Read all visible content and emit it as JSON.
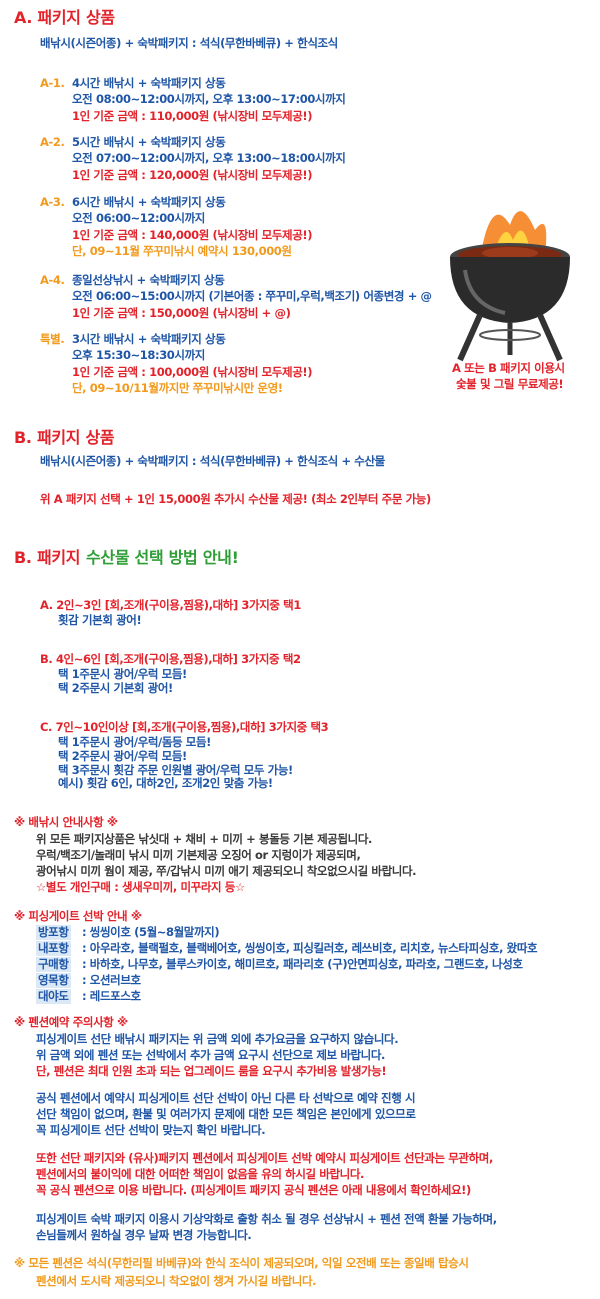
{
  "package_a": {
    "title": "A. 패키지 상품",
    "subtitle": "배낚시(시즌어종) + 숙박패키지 : 석식(무한바베큐) + 한식조식",
    "items": [
      {
        "label": "A-1.",
        "lines": [
          "4시간 배낚시 + 숙박패키지 상동",
          "오전 08:00~12:00시까지, 오후 13:00~17:00시까지",
          "1인 기준 금액 : 110,000원 (낚시장비 모두제공!)"
        ]
      },
      {
        "label": "A-2.",
        "lines": [
          "5시간 배낚시 + 숙박패키지 상동",
          "오전 07:00~12:00시까지, 오후 13:00~18:00시까지",
          "1인 기준 금액 : 120,000원 (낚시장비 모두제공!)"
        ]
      },
      {
        "label": "A-3.",
        "lines": [
          "6시간 배낚시 + 숙박패키지 상동",
          "오전 06:00~12:00시까지",
          "1인 기준 금액 : 140,000원 (낚시장비 모두제공!)",
          "단, 09~11월 쭈꾸미낚시 예약시 130,000원"
        ]
      },
      {
        "label": "A-4.",
        "lines": [
          "종일선상낚시 + 숙박패키지 상동",
          "오전 06:00~15:00시까지 (기본어종 : 쭈꾸미,우럭,백조기) 어종변경 + @",
          "1인 기준 금액 : 150,000원 (낚시장비 + @)"
        ]
      },
      {
        "label": "특별.",
        "lines": [
          "3시간 배낚시 + 숙박패키지 상동",
          "오후  15:30~18:30시까지",
          "1인 기준 금액 : 100,000원 (낚시장비 모두제공!)",
          "단, 09~10/11월까지만 쭈꾸미낚시만 운영!"
        ]
      }
    ],
    "note": [
      "A 또는 B 패키지 이용시",
      "숯불 및 그릴 무료제공!"
    ]
  },
  "package_b": {
    "title": "B. 패키지 상품",
    "subtitle": "배낚시(시즌어종) + 숙박패키지 : 석식(무한바베큐) + 한식조식 + 수산물",
    "offer": "위 A 패키지 선택 + 1인 15,000원 추가시 수산물 제공! (최소 2인부터 주문 가능)"
  },
  "seafood_guide": {
    "title_prefix": "B. 패키지",
    "title_highlight": "수산물 선택 방법 안내!",
    "options": [
      {
        "heading": "A. 2인~3인 [회,조개(구이용,찜용),대하] 3가지중 택1",
        "lines": [
          "횟감 기본회 광어!"
        ]
      },
      {
        "heading": "B. 4인~6인 [회,조개(구이용,찜용),대하] 3가지중 택2",
        "lines": [
          "택 1주문시 광어/우럭 모듬!",
          "택 2주문시 기본회 광어!"
        ]
      },
      {
        "heading": "C. 7인~10인이상 [회,조개(구이용,찜용),대하] 3가지중 택3",
        "lines": [
          "택 1주문시 광어/우럭/돔등 모듬!",
          "택 2주문시 광어/우럭 모듬!",
          "택 3주문시 횟감 주문 인원별 광어/우럭 모두 가능!",
          "예시) 횟감 6인, 대하2인, 조개2인 맞춤 가능!"
        ]
      }
    ]
  },
  "fishing_notice": {
    "title": "※ 배낚시 안내사항 ※",
    "lines": [
      "위 모든 패키지상품은 낚싯대 + 채비 + 미끼 + 봉돌등 기본 제공됩니다.",
      "우럭/백조기/놀래미 낚시 미끼 기본제공 오징어 or 지렁이가 제공되며,",
      "광어낚시 미끼 웜이 제공, 쭈/갑낚시 미끼 애기 제공되오니 착오없으시길 바랍니다."
    ],
    "extra": "☆별도 개인구매 : 생새우미끼, 미꾸라지 등☆"
  },
  "boat_info": {
    "title": "※ 피싱게이트 선박 안내 ※",
    "rows": [
      {
        "port": "방포항",
        "boats": ": 씽씽이호 (5월~8월말까지)"
      },
      {
        "port": "내포항",
        "boats": ": 아우라호, 블랙펄호, 블랙베어호, 씽씽이호, 피싱킬러호, 레쓰비호, 리치호, 뉴스타피싱호, 왔따호"
      },
      {
        "port": "구매항",
        "boats": ": 바하호, 나무호, 블루스카이호, 해미르호, 패라리호 (구)안면피싱호, 파라호, 그랜드호, 나성호"
      },
      {
        "port": "영목항",
        "boats": ": 오션러브호"
      },
      {
        "port": "대야도",
        "boats": ": 레드포스호"
      }
    ]
  },
  "pension_notice": {
    "title": "※ 펜션예약 주의사항 ※",
    "paragraphs": [
      [
        "피싱게이트 선단 배낚시 패키지는 위 금액 외에 추가요금을 요구하지 않습니다.",
        "위 금액 외에 펜션 또는 선박에서 추가 금액 요구시 선단으로 제보 바랍니다.",
        "단, 펜션은 최대 인원 초과 되는 업그레이드 룸을 요구시 추가비용 발생가능!"
      ],
      [
        "공식 펜션에서 예약시 피싱게이트 선단 선박이 아닌 다른 타 선박으로 예약 진행 시",
        "선단 책임이 없으며, 환불 및 여러가지 문제에 대한 모든 책임은 본인에게 있으므로",
        "꼭 피싱게이트 선단 선박이 맞는지 확인 바랍니다."
      ],
      [
        "또한 선단 패키지와 (유사)패키지 펜션에서 피싱게이트 선박 예약시 피싱게이트 선단과는 무관하며,",
        "펜션에서의 불이익에 대한 어떠한 책임이 없음을 유의 하시길 바랍니다.",
        "꼭 공식 펜션으로 이용 바랍니다. (피싱게이트 패키지 공식 펜션은 아래 내용에서 확인하세요!)"
      ],
      [
        "피싱게이트 숙박 패키지 이용시 기상악화로 출항 취소 될 경우 선상낚시 + 펜션 전액 환불 가능하며,",
        "손님들께서 원하실 경우 날짜 변경 가능합니다."
      ]
    ]
  },
  "footer": {
    "lines": [
      "※ 모든 펜션은 석식(무한리필 바베큐)와 한식 조식이 제공되오며, 익일 오전배 또는 종일배 탑승시",
      "펜션에서 도시락 제공되오니 착오없이 챙겨 가시길 바랍니다."
    ]
  }
}
